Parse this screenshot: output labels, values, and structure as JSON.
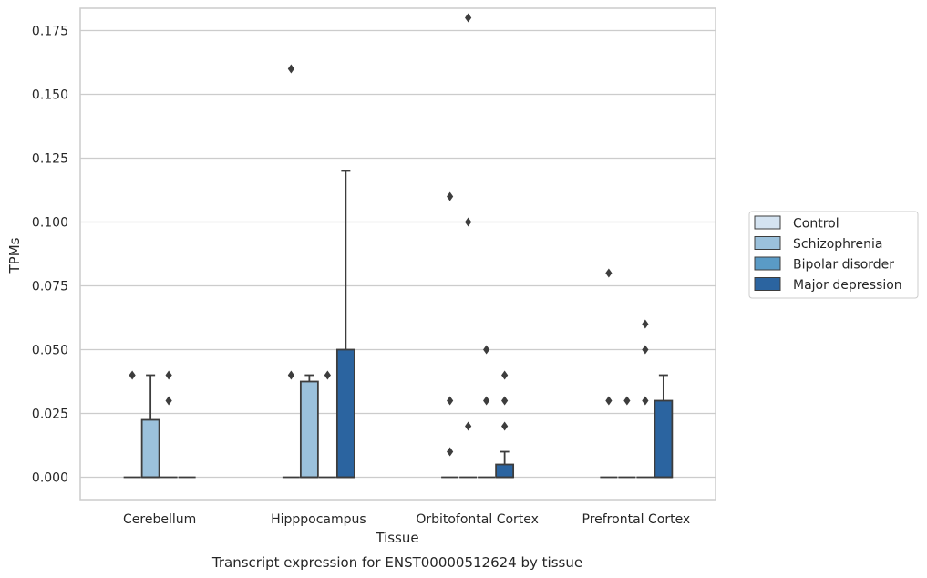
{
  "chart_data": {
    "type": "box",
    "caption": "Transcript expression for ENST00000512624 by tissue",
    "xlabel": "Tissue",
    "ylabel": "TPMs",
    "ylim": [
      -0.009,
      0.188
    ],
    "yticks": [
      0.0,
      0.025,
      0.05,
      0.075,
      0.1,
      0.125,
      0.15,
      0.175
    ],
    "ytick_labels": [
      "0.000",
      "0.025",
      "0.050",
      "0.075",
      "0.100",
      "0.125",
      "0.150",
      "0.175"
    ],
    "grid": "horizontal",
    "legend_position": "right",
    "categories": [
      "Cerebellum",
      "Hipppocampus",
      "Orbitofontal Cortex",
      "Prefrontal Cortex"
    ],
    "series": [
      {
        "name": "Control",
        "color": "#d4e3f1",
        "boxes": [
          {
            "q1": 0.0,
            "median": 0.0,
            "q3": 0.0,
            "whisker_low": 0.0,
            "whisker_high": 0.0,
            "outliers": [
              0.04
            ]
          },
          {
            "q1": 0.0,
            "median": 0.0,
            "q3": 0.0,
            "whisker_low": 0.0,
            "whisker_high": 0.0,
            "outliers": [
              0.04,
              0.16
            ]
          },
          {
            "q1": 0.0,
            "median": 0.0,
            "q3": 0.0,
            "whisker_low": 0.0,
            "whisker_high": 0.0,
            "outliers": [
              0.01,
              0.03,
              0.11
            ]
          },
          {
            "q1": 0.0,
            "median": 0.0,
            "q3": 0.0,
            "whisker_low": 0.0,
            "whisker_high": 0.0,
            "outliers": [
              0.03,
              0.08
            ]
          }
        ]
      },
      {
        "name": "Schizophrenia",
        "color": "#9bc1dc",
        "boxes": [
          {
            "q1": 0.0,
            "median": 0.0,
            "q3": 0.0225,
            "whisker_low": 0.0,
            "whisker_high": 0.04,
            "outliers": []
          },
          {
            "q1": 0.0,
            "median": 0.0,
            "q3": 0.0375,
            "whisker_low": 0.0,
            "whisker_high": 0.04,
            "outliers": []
          },
          {
            "q1": 0.0,
            "median": 0.0,
            "q3": 0.0,
            "whisker_low": 0.0,
            "whisker_high": 0.0,
            "outliers": [
              0.02,
              0.1,
              0.18
            ]
          },
          {
            "q1": 0.0,
            "median": 0.0,
            "q3": 0.0,
            "whisker_low": 0.0,
            "whisker_high": 0.0,
            "outliers": [
              0.03
            ]
          }
        ]
      },
      {
        "name": "Bipolar disorder",
        "color": "#5a9bc6",
        "boxes": [
          {
            "q1": 0.0,
            "median": 0.0,
            "q3": 0.0,
            "whisker_low": 0.0,
            "whisker_high": 0.0,
            "outliers": [
              0.03,
              0.04
            ]
          },
          {
            "q1": 0.0,
            "median": 0.0,
            "q3": 0.0,
            "whisker_low": 0.0,
            "whisker_high": 0.0,
            "outliers": [
              0.04
            ]
          },
          {
            "q1": 0.0,
            "median": 0.0,
            "q3": 0.0,
            "whisker_low": 0.0,
            "whisker_high": 0.0,
            "outliers": [
              0.03,
              0.05
            ]
          },
          {
            "q1": 0.0,
            "median": 0.0,
            "q3": 0.0,
            "whisker_low": 0.0,
            "whisker_high": 0.0,
            "outliers": [
              0.03,
              0.05,
              0.06
            ]
          }
        ]
      },
      {
        "name": "Major depression",
        "color": "#2b64a0",
        "boxes": [
          {
            "q1": 0.0,
            "median": 0.0,
            "q3": 0.0,
            "whisker_low": 0.0,
            "whisker_high": 0.0,
            "outliers": []
          },
          {
            "q1": 0.0,
            "median": 0.0,
            "q3": 0.05,
            "whisker_low": 0.0,
            "whisker_high": 0.12,
            "outliers": []
          },
          {
            "q1": 0.0,
            "median": 0.0,
            "q3": 0.005,
            "whisker_low": 0.0,
            "whisker_high": 0.01,
            "outliers": [
              0.02,
              0.03,
              0.04
            ]
          },
          {
            "q1": 0.0,
            "median": 0.0,
            "q3": 0.03,
            "whisker_low": 0.0,
            "whisker_high": 0.04,
            "outliers": []
          }
        ]
      }
    ]
  }
}
